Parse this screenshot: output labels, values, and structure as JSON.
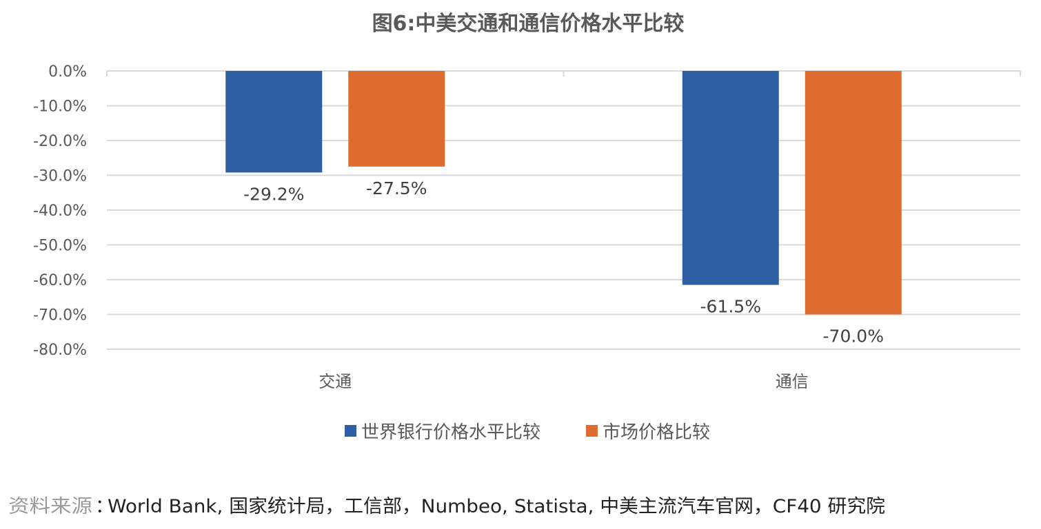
{
  "chart_data": {
    "type": "bar",
    "title": "图6:中美交通和通信价格水平比较",
    "categories": [
      "交通",
      "通信"
    ],
    "series": [
      {
        "name": "世界银行价格水平比较",
        "values": [
          -29.2,
          -61.5
        ],
        "color": "#2E5FA3"
      },
      {
        "name": "市场价格比较",
        "values": [
          -27.5,
          -70.0
        ],
        "color": "#DE6C2F"
      }
    ],
    "data_labels": [
      [
        "-29.2%",
        "-61.5%"
      ],
      [
        "-27.5%",
        "-70.0%"
      ]
    ],
    "ylim": [
      -80,
      0
    ],
    "yticks": [
      0,
      -10,
      -20,
      -30,
      -40,
      -50,
      -60,
      -70,
      -80
    ],
    "ytick_labels": [
      "0.0%",
      "-10.0%",
      "-20.0%",
      "-30.0%",
      "-40.0%",
      "-50.0%",
      "-60.0%",
      "-70.0%",
      "-80.0%"
    ],
    "xlabel": "",
    "ylabel": "",
    "grid": true,
    "legend_position": "bottom"
  },
  "source": {
    "label": "资料来源",
    "text": "World Bank, 国家统计局，工信部，Numbeo, Statista, 中美主流汽车官网，CF40 研究院"
  }
}
